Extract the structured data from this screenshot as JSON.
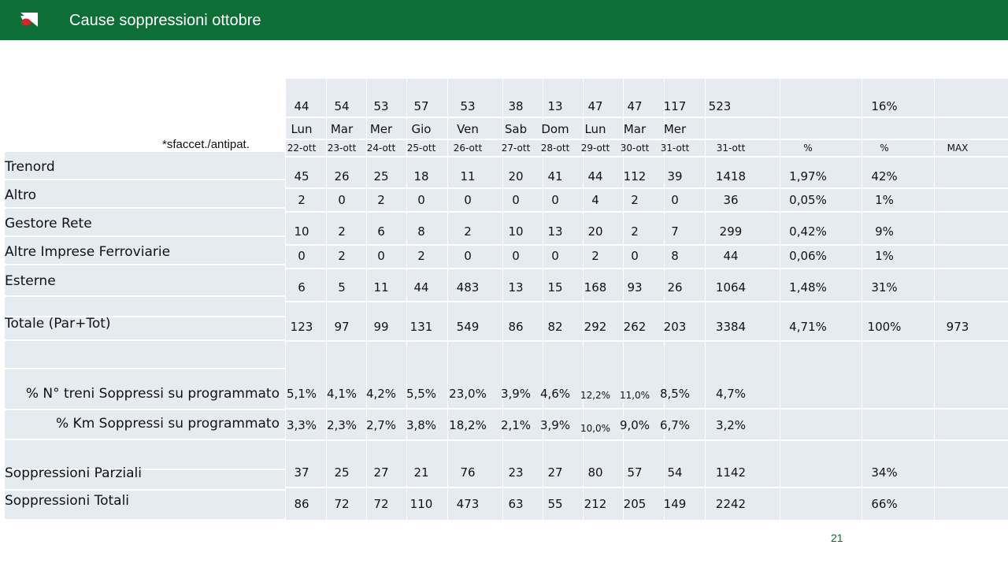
{
  "header": {
    "title": "Cause soppressioni ottobre"
  },
  "note": "*sfaccet./antipat.",
  "page_number": "21",
  "colors": {
    "header_bg": "#0d6e37",
    "cell_bg": "#e6ebf2",
    "logo_red": "#d8232a"
  },
  "table": {
    "top_counts": [
      "44",
      "54",
      "53",
      "57",
      "53",
      "38",
      "13",
      "47",
      "47",
      "117",
      "523",
      "",
      "16%",
      ""
    ],
    "weekdays": [
      "Lun",
      "Mar",
      "Mer",
      "Gio",
      "Ven",
      "Sab",
      "Dom",
      "Lun",
      "Mar",
      "Mer",
      "",
      "",
      "",
      ""
    ],
    "dates": [
      "22-ott",
      "23-ott",
      "24-ott",
      "25-ott",
      "26-ott",
      "27-ott",
      "28-ott",
      "29-ott",
      "30-ott",
      "31-ott",
      "31-ott",
      "%",
      "%",
      "MAX"
    ],
    "rows": [
      {
        "label": "Trenord",
        "values": [
          "45",
          "26",
          "25",
          "18",
          "11",
          "20",
          "41",
          "44",
          "112",
          "39",
          "1418",
          "1,97%",
          "42%",
          ""
        ]
      },
      {
        "label": "Altro",
        "values": [
          "2",
          "0",
          "2",
          "0",
          "0",
          "0",
          "0",
          "4",
          "2",
          "0",
          "36",
          "0,05%",
          "1%",
          ""
        ]
      },
      {
        "label": "Gestore Rete",
        "values": [
          "10",
          "2",
          "6",
          "8",
          "2",
          "10",
          "13",
          "20",
          "2",
          "7",
          "299",
          "0,42%",
          "9%",
          ""
        ]
      },
      {
        "label": "Altre Imprese Ferroviarie",
        "values": [
          "0",
          "2",
          "0",
          "2",
          "0",
          "0",
          "0",
          "2",
          "0",
          "8",
          "44",
          "0,06%",
          "1%",
          ""
        ]
      },
      {
        "label": "Esterne",
        "values": [
          "6",
          "5",
          "11",
          "44",
          "483",
          "13",
          "15",
          "168",
          "93",
          "26",
          "1064",
          "1,48%",
          "31%",
          ""
        ]
      },
      {
        "label": "Totale (Par+Tot)",
        "values": [
          "123",
          "97",
          "99",
          "131",
          "549",
          "86",
          "82",
          "292",
          "262",
          "203",
          "3384",
          "4,71%",
          "100%",
          "973"
        ]
      },
      {
        "label": "% N° treni Soppressi su programmato",
        "values": [
          "5,1%",
          "4,1%",
          "4,2%",
          "5,5%",
          "23,0%",
          "3,9%",
          "4,6%",
          "12,2%",
          "11,0%",
          "8,5%",
          "4,7%",
          "",
          "",
          ""
        ]
      },
      {
        "label": "% Km Soppressi su programmato",
        "values": [
          "3,3%",
          "2,3%",
          "2,7%",
          "3,8%",
          "18,2%",
          "2,1%",
          "3,9%",
          "10,0%",
          "9,0%",
          "6,7%",
          "3,2%",
          "",
          "",
          ""
        ]
      },
      {
        "label": "Soppressioni Parziali",
        "values": [
          "37",
          "25",
          "27",
          "21",
          "76",
          "23",
          "27",
          "80",
          "57",
          "54",
          "1142",
          "",
          "34%",
          ""
        ]
      },
      {
        "label": "Soppressioni Totali",
        "values": [
          "86",
          "72",
          "72",
          "110",
          "473",
          "63",
          "55",
          "212",
          "205",
          "149",
          "2242",
          "",
          "66%",
          ""
        ]
      }
    ]
  }
}
